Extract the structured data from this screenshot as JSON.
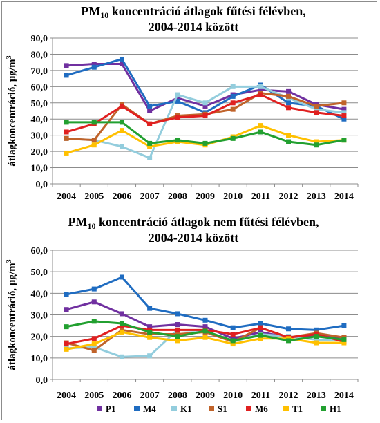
{
  "chart_data": [
    {
      "type": "line",
      "title_main": "PM",
      "title_sub": "10",
      "title_rest": " koncentráció átlagok fűtési félévben,",
      "title_line2": "2004-2014 között",
      "ylabel_main": "átlagkoncentráció, μg/m",
      "ylabel_sup": "3",
      "ylim": [
        0,
        90
      ],
      "ytick_labels": [
        "0,0",
        "10,0",
        "20,0",
        "30,0",
        "40,0",
        "50,0",
        "60,0",
        "70,0",
        "80,0",
        "90,0"
      ],
      "categories": [
        "2004",
        "2005",
        "2006",
        "2007",
        "2008",
        "2009",
        "2010",
        "2011",
        "2012",
        "2013",
        "2014"
      ],
      "grid": true,
      "series": [
        {
          "name": "P1",
          "color": "#7030a0",
          "values": [
            73,
            74,
            74,
            45,
            53,
            48,
            55,
            58,
            57,
            49,
            46
          ]
        },
        {
          "name": "M4",
          "color": "#1f6cc1",
          "values": [
            67,
            72,
            77,
            48,
            51,
            44,
            54,
            61,
            50,
            48,
            40
          ]
        },
        {
          "name": "K1",
          "color": "#93cddd",
          "values": [
            28,
            27,
            23,
            16,
            55,
            50,
            60,
            60,
            53,
            46,
            44
          ]
        },
        {
          "name": "S1",
          "color": "#c0632a",
          "values": [
            28,
            27,
            49,
            37,
            42,
            43,
            46,
            56,
            54,
            48,
            50
          ]
        },
        {
          "name": "M6",
          "color": "#e02020",
          "values": [
            32,
            37,
            48,
            37,
            41,
            42,
            50,
            55,
            47,
            44,
            42
          ]
        },
        {
          "name": "T1",
          "color": "#ffc000",
          "values": [
            19,
            24,
            33,
            23,
            26,
            24,
            29,
            36,
            30,
            26,
            27
          ]
        },
        {
          "name": "H1",
          "color": "#22a030",
          "values": [
            38,
            38,
            38,
            25,
            27,
            25,
            28,
            32,
            26,
            24,
            27
          ]
        }
      ]
    },
    {
      "type": "line",
      "title_main": "PM",
      "title_sub": "10",
      "title_rest": " koncentráció átlagok nem fűtési félévben,",
      "title_line2": "2004-2014 között",
      "ylabel_main": "átlagkoncentráció, μg/m",
      "ylabel_sup": "3",
      "ylim": [
        0,
        60
      ],
      "ytick_labels": [
        "0,0",
        "10,0",
        "20,0",
        "30,0",
        "40,0",
        "50,0",
        "60,0"
      ],
      "categories": [
        "2004",
        "2005",
        "2006",
        "2007",
        "2008",
        "2009",
        "2010",
        "2011",
        "2012",
        "2013",
        "2014"
      ],
      "grid": true,
      "legend_position": "bottom",
      "series": [
        {
          "name": "P1",
          "color": "#7030a0",
          "values": [
            32.5,
            36,
            30.5,
            24.5,
            25.5,
            24.5,
            19,
            22,
            19.5,
            20.5,
            19.5
          ]
        },
        {
          "name": "M4",
          "color": "#1f6cc1",
          "values": [
            39.5,
            42,
            47.5,
            33,
            30.5,
            27.5,
            24,
            26,
            23.5,
            23,
            25
          ]
        },
        {
          "name": "K1",
          "color": "#93cddd",
          "values": [
            14.5,
            15,
            10.5,
            11,
            23,
            22.5,
            17.5,
            21,
            20,
            18.5,
            18
          ]
        },
        {
          "name": "S1",
          "color": "#c0632a",
          "values": [
            17,
            13.5,
            23,
            21,
            21,
            22,
            17.5,
            24,
            19.5,
            21.5,
            19.5
          ]
        },
        {
          "name": "M6",
          "color": "#e02020",
          "values": [
            16.5,
            19,
            25,
            23,
            23,
            23,
            21,
            24,
            19.5,
            21,
            17.5
          ]
        },
        {
          "name": "T1",
          "color": "#ffc000",
          "values": [
            14,
            16.5,
            22,
            19.5,
            18,
            19.5,
            16.5,
            19,
            19,
            17,
            17
          ]
        },
        {
          "name": "H1",
          "color": "#22a030",
          "values": [
            24.5,
            27,
            26,
            22,
            20,
            22.5,
            18,
            20.5,
            18,
            20,
            18.5
          ]
        }
      ]
    }
  ]
}
